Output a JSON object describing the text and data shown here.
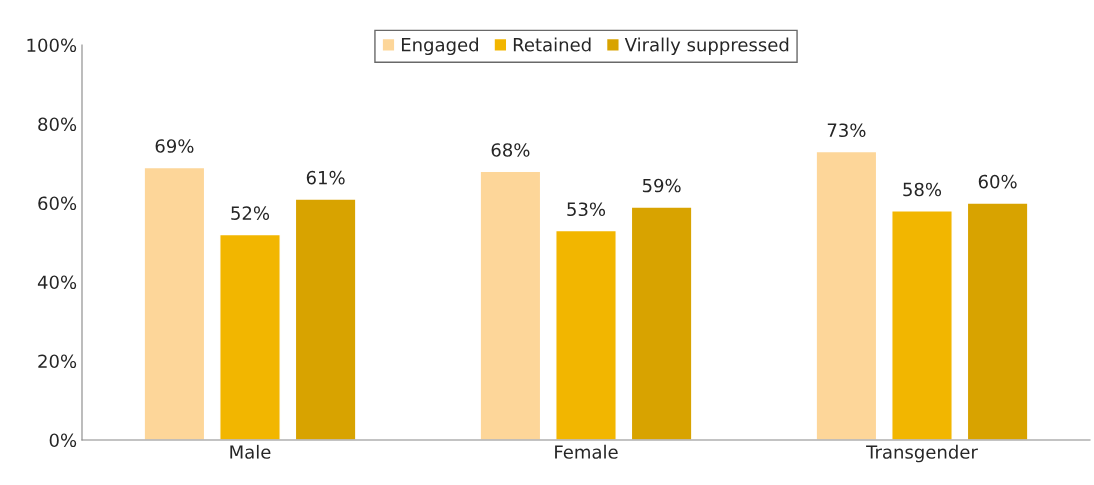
{
  "chart_data": {
    "type": "bar",
    "categories": [
      "Male",
      "Female",
      "Transgender"
    ],
    "series": [
      {
        "name": "Engaged",
        "color": "#fdd699",
        "values": [
          69,
          68,
          73
        ],
        "value_labels": [
          "69%",
          "68%",
          "73%"
        ]
      },
      {
        "name": "Retained",
        "color": "#f2b600",
        "values": [
          52,
          53,
          58
        ],
        "value_labels": [
          "52%",
          "53%",
          "58%"
        ]
      },
      {
        "name": "Virally suppressed",
        "color": "#d8a300",
        "values": [
          61,
          59,
          60
        ],
        "value_labels": [
          "61%",
          "59%",
          "60%"
        ]
      }
    ],
    "ylim": [
      0,
      100
    ],
    "yticks": [
      {
        "value": 0,
        "label": "0%"
      },
      {
        "value": 20,
        "label": "20%"
      },
      {
        "value": 40,
        "label": "40%"
      },
      {
        "value": 60,
        "label": "60%"
      },
      {
        "value": 80,
        "label": "80%"
      },
      {
        "value": 100,
        "label": "100%"
      }
    ],
    "grid": false,
    "legend": "top"
  }
}
